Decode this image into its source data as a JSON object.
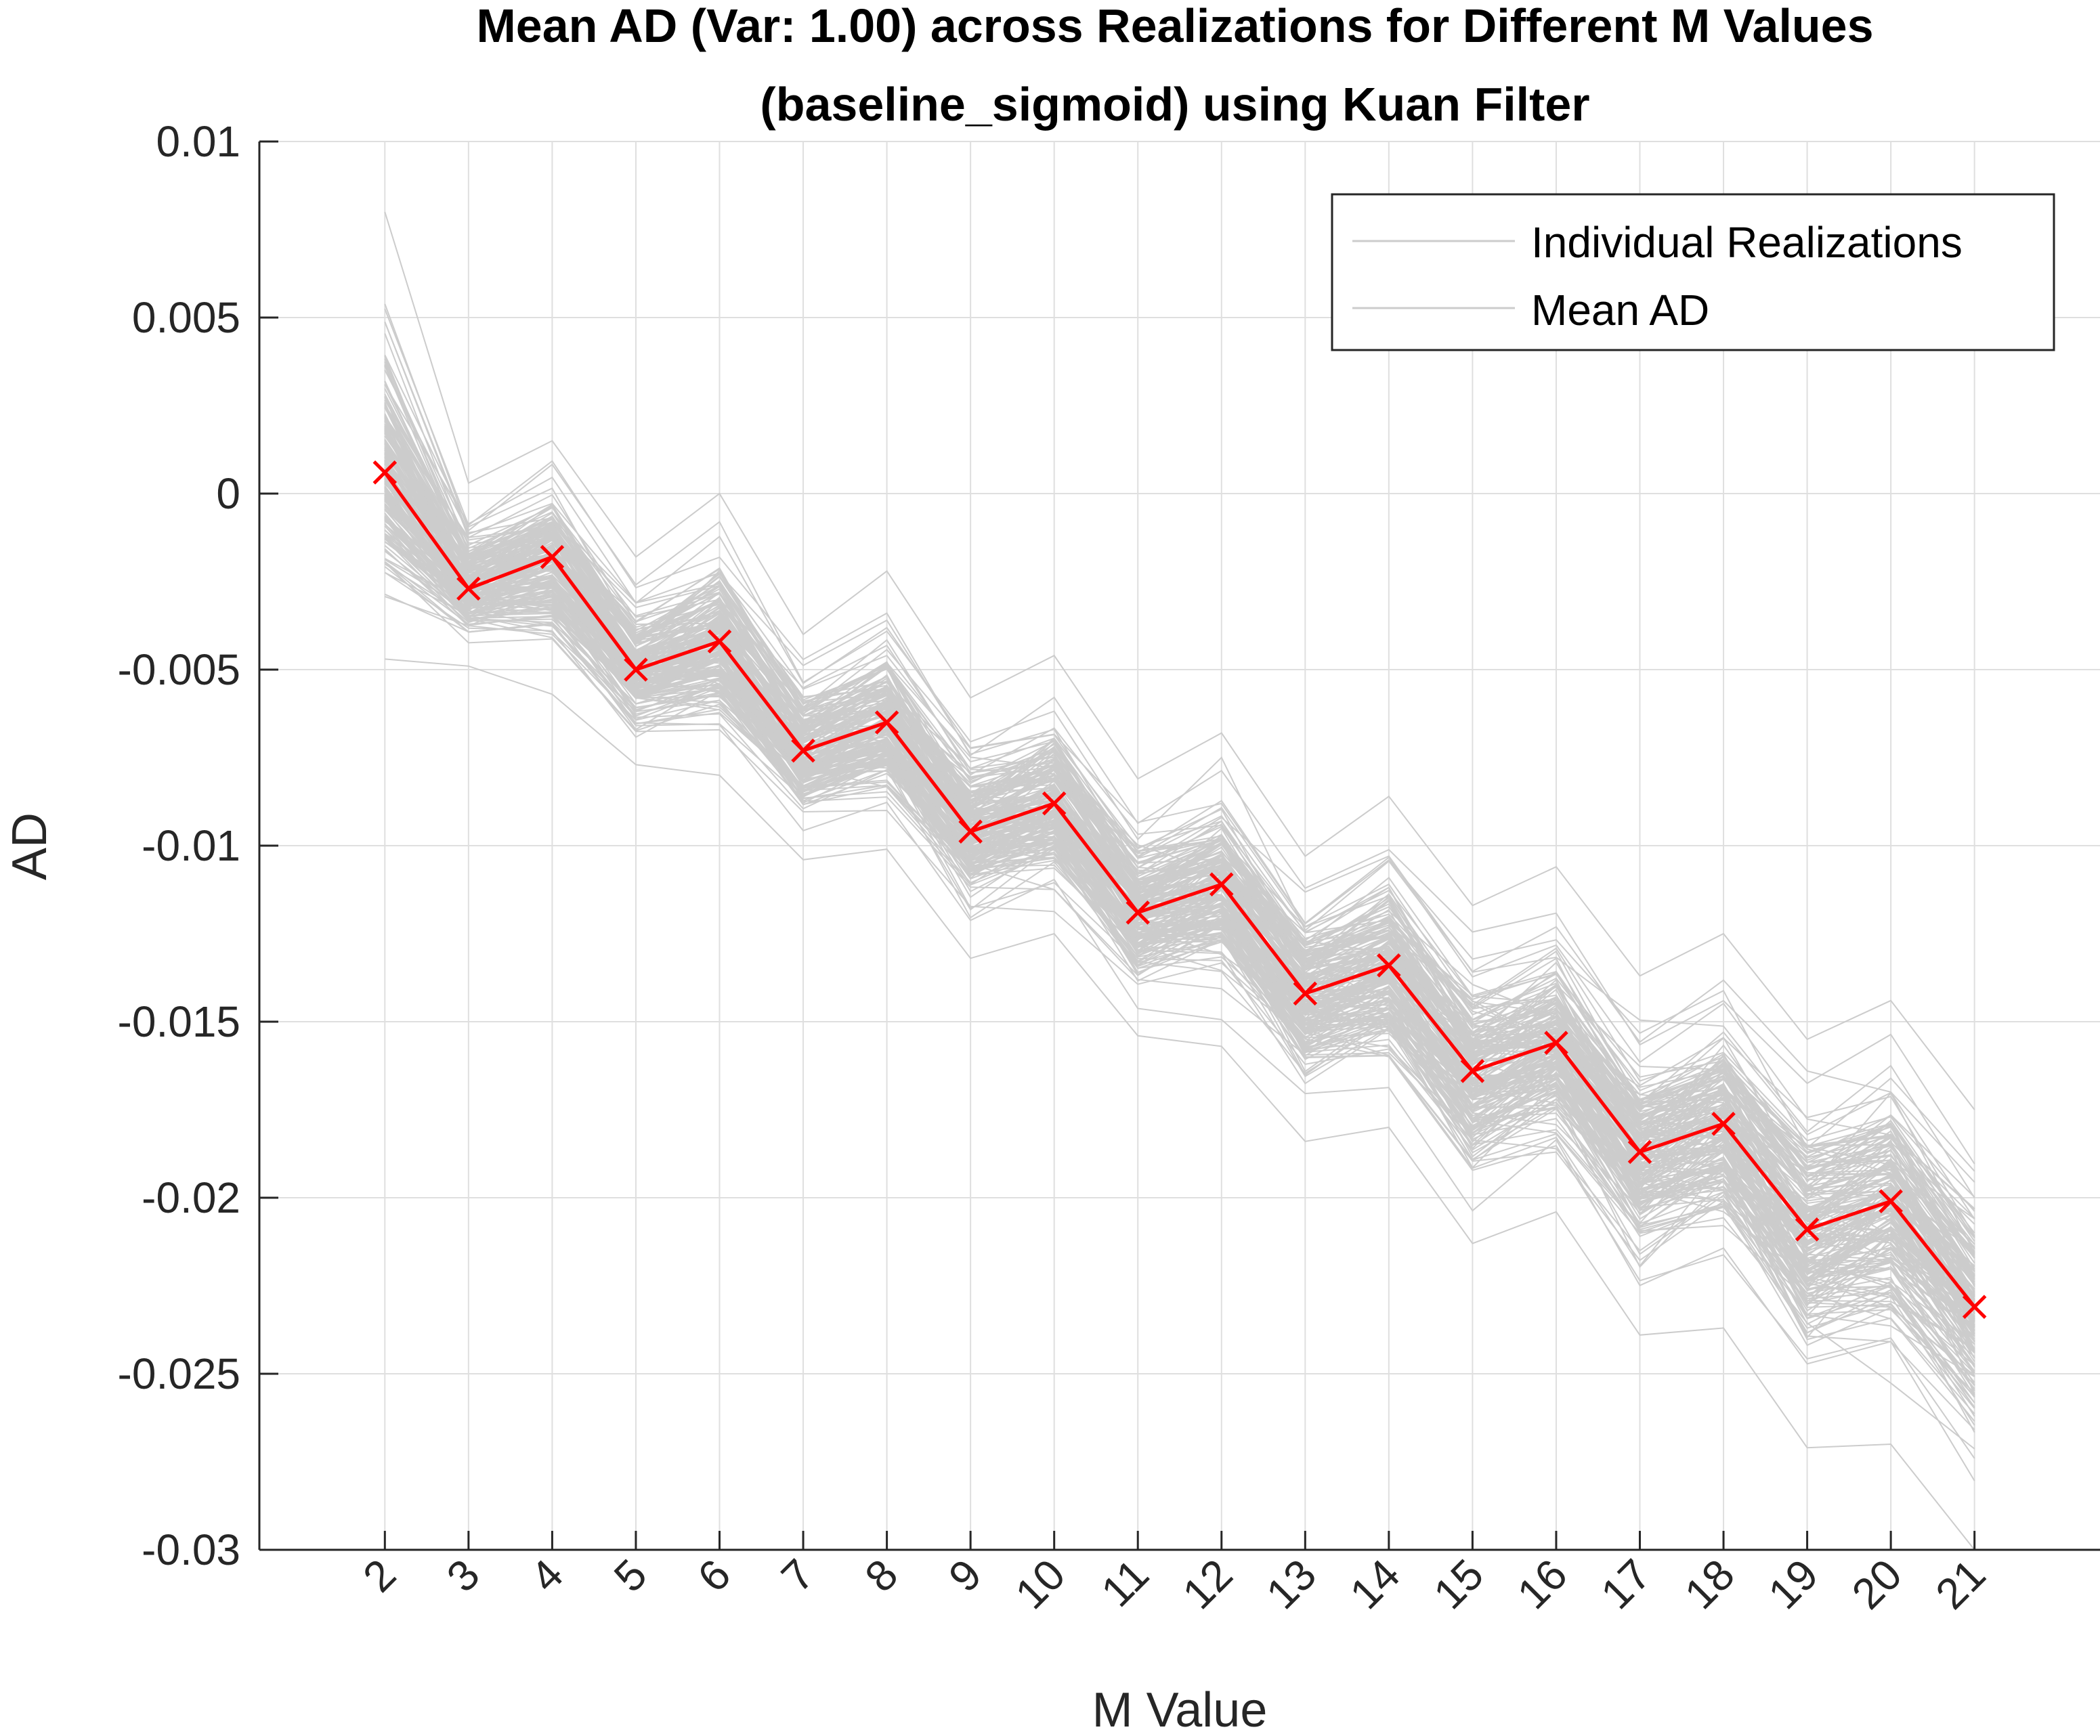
{
  "chart_data": {
    "type": "line",
    "title": [
      "Mean AD (Var: 1.00) across Realizations for Different M Values",
      "(baseline_sigmoid) using Kuan Filter"
    ],
    "xlabel": "M Value",
    "ylabel": "AD",
    "x": [
      2,
      3,
      4,
      5,
      6,
      7,
      8,
      9,
      10,
      11,
      12,
      13,
      14,
      15,
      16,
      17,
      18,
      19,
      20,
      21
    ],
    "xlim": [
      0.5,
      22.5
    ],
    "ylim": [
      -0.03,
      0.01
    ],
    "yticks": [
      0.01,
      0.005,
      0,
      -0.005,
      -0.01,
      -0.015,
      -0.02,
      -0.025,
      -0.03
    ],
    "ytick_labels": [
      "0.01",
      "0.005",
      "0",
      "-0.005",
      "-0.01",
      "-0.015",
      "-0.02",
      "-0.025",
      "-0.03"
    ],
    "xtick_labels": [
      "2",
      "3",
      "4",
      "5",
      "6",
      "7",
      "8",
      "9",
      "10",
      "11",
      "12",
      "13",
      "14",
      "15",
      "16",
      "17",
      "18",
      "19",
      "20",
      "21"
    ],
    "grid": true,
    "legend": {
      "placement": "top-right",
      "entries": [
        "Individual Realizations",
        "Mean AD"
      ]
    },
    "series": [
      {
        "name": "Mean AD",
        "color": "#ff0000",
        "marker": "x",
        "values": [
          0.0006,
          -0.0027,
          -0.0018,
          -0.005,
          -0.0042,
          -0.0073,
          -0.0065,
          -0.0096,
          -0.0088,
          -0.0119,
          -0.0111,
          -0.0142,
          -0.0134,
          -0.0164,
          -0.0156,
          -0.0187,
          -0.0179,
          -0.0209,
          -0.0201,
          -0.0231
        ]
      },
      {
        "name": "Individual Realizations",
        "color": "#cccccc",
        "count": 200,
        "upper": [
          0.008,
          0.0003,
          0.0015,
          -0.0018,
          0.0,
          -0.004,
          -0.0022,
          -0.0058,
          -0.0046,
          -0.0081,
          -0.0068,
          -0.0103,
          -0.0086,
          -0.0117,
          -0.0106,
          -0.0137,
          -0.0125,
          -0.0155,
          -0.0144,
          -0.0175
        ],
        "lower": [
          -0.0047,
          -0.0049,
          -0.0057,
          -0.0077,
          -0.008,
          -0.0104,
          -0.0101,
          -0.0132,
          -0.0125,
          -0.0154,
          -0.0157,
          -0.0184,
          -0.018,
          -0.0213,
          -0.0204,
          -0.0239,
          -0.0237,
          -0.0271,
          -0.027,
          -0.03
        ]
      }
    ]
  }
}
